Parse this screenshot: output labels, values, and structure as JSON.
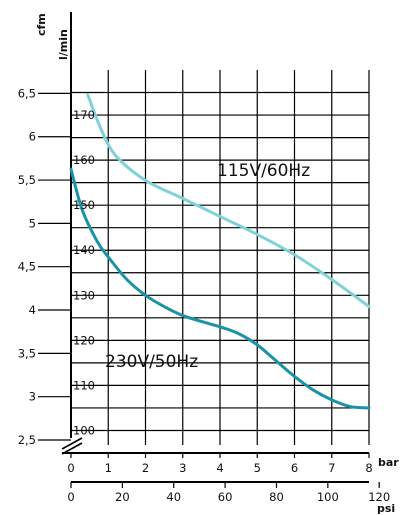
{
  "chart_data": {
    "type": "line",
    "title": "",
    "x_axis": {
      "unit": "bar",
      "range": [
        0,
        8
      ],
      "ticks": [
        0,
        1,
        2,
        3,
        4,
        5,
        6,
        7,
        8
      ],
      "tick_labels": [
        "0",
        "1",
        "2",
        "3",
        "4",
        "5",
        "6",
        "7",
        "8"
      ]
    },
    "x2_axis": {
      "unit": "psi",
      "ticks": [
        0,
        20,
        40,
        60,
        80,
        100,
        120
      ],
      "tick_labels": [
        "0",
        "20",
        "40",
        "60",
        "80",
        "100",
        "120"
      ]
    },
    "y_axis": {
      "unit": "l/min",
      "range": [
        95,
        180
      ],
      "ticks": [
        100,
        110,
        120,
        130,
        140,
        150,
        160,
        170
      ],
      "tick_labels": [
        "100",
        "110",
        "120",
        "130",
        "140",
        "150",
        "160",
        "170"
      ],
      "axis_break_below": 100
    },
    "y2_axis": {
      "unit": "cfm",
      "ticks": [
        2.5,
        3,
        3.5,
        4,
        4.5,
        5,
        5.5,
        6,
        6.5
      ],
      "tick_labels": [
        "2,5",
        "3",
        "3,5",
        "4",
        "4,5",
        "5",
        "5,5",
        "6",
        "6,5"
      ]
    },
    "grid": true,
    "series": [
      {
        "name": "115V/60Hz",
        "color": "#7fd3d8",
        "points": [
          [
            0.45,
            174.5
          ],
          [
            0.8,
            167
          ],
          [
            1.2,
            161
          ],
          [
            2,
            155.5
          ],
          [
            3,
            151.5
          ],
          [
            4,
            147.5
          ],
          [
            5,
            143.5
          ],
          [
            6,
            139
          ],
          [
            7,
            133.5
          ],
          [
            8,
            127.5
          ]
        ]
      },
      {
        "name": "230V/50Hz",
        "color": "#1a93a8",
        "points": [
          [
            0,
            158
          ],
          [
            0.3,
            149
          ],
          [
            0.7,
            142
          ],
          [
            1,
            138.5
          ],
          [
            1.5,
            133.5
          ],
          [
            2,
            130
          ],
          [
            2.5,
            127.5
          ],
          [
            3,
            125.5
          ],
          [
            3.5,
            124.2
          ],
          [
            4,
            123
          ],
          [
            4.5,
            121.5
          ],
          [
            5,
            119
          ],
          [
            5.5,
            115.5
          ],
          [
            6,
            112
          ],
          [
            6.5,
            109
          ],
          [
            7,
            106.8
          ],
          [
            7.5,
            105.3
          ],
          [
            8,
            105
          ]
        ]
      }
    ]
  }
}
